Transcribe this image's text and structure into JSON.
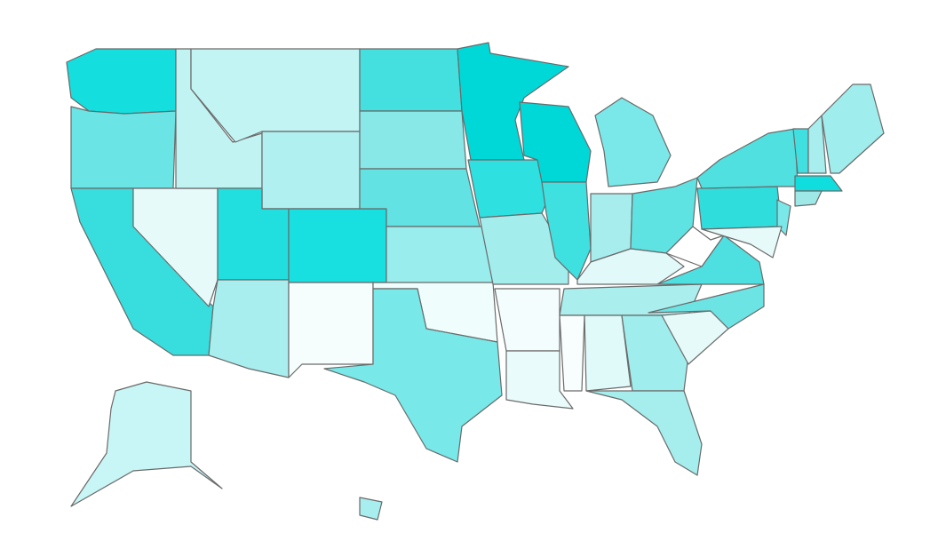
{
  "map": {
    "fills": [
      "#14dede",
      "#6ae4e4",
      "#38dddd",
      "#e6fafa",
      "#c2f3f3",
      "#c2f4f4",
      "#b0f0f0",
      "#22dfdf",
      "#18e0e0",
      "#a8eeee",
      "#f5fdfd",
      "#44e0e0",
      "#88e8e8",
      "#62e2e2",
      "#9aeded",
      "#f0fdfd",
      "#78e8e8",
      "#00d8d8",
      "#2ee0e0",
      "#a4eded",
      "#f4fdfd",
      "#eafbfb",
      "#00d8d8",
      "#3ee0e0",
      "#7ae8e8",
      "#a8eded",
      "#5ee2e2",
      "#e2f9f9",
      "#aaeeee",
      "#f8fdfd",
      "#e0f9f9",
      "#a0eded",
      "#a6eeee",
      "#e6fafa",
      "#6ce4e4",
      "#4ee0e0",
      "#ffffff",
      "#30dddd",
      "#50e0e0",
      "#7ae8e8",
      "#e6fafa",
      "#40e0e0",
      "#a8eeee",
      "#a0eded",
      "#10dede",
      "#9ee8e8",
      "#c8f5f5",
      "#a8eeee"
    ]
  }
}
